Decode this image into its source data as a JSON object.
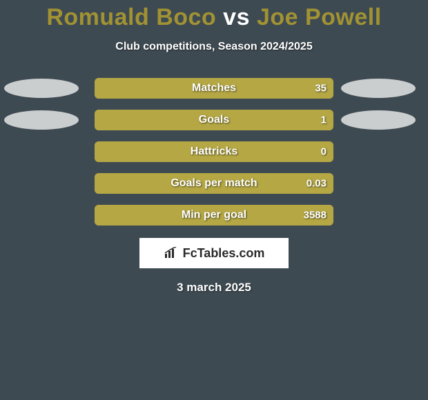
{
  "title": {
    "player1": "Romuald Boco",
    "vs": "vs",
    "player2": "Joe Powell"
  },
  "subtitle": "Club competitions, Season 2024/2025",
  "colors": {
    "ellipse_left": "#cbcecf",
    "ellipse_right": "#cbcecf",
    "bar_track": "#a39433",
    "bar_fill": "#b4a744",
    "background": "#3e4a52"
  },
  "rows": [
    {
      "label": "Matches",
      "value": "35",
      "fill_pct": 100,
      "show_ellipses": true
    },
    {
      "label": "Goals",
      "value": "1",
      "fill_pct": 100,
      "show_ellipses": true
    },
    {
      "label": "Hattricks",
      "value": "0",
      "fill_pct": 100,
      "show_ellipses": false
    },
    {
      "label": "Goals per match",
      "value": "0.03",
      "fill_pct": 100,
      "show_ellipses": false
    },
    {
      "label": "Min per goal",
      "value": "3588",
      "fill_pct": 100,
      "show_ellipses": false
    }
  ],
  "brand": "FcTables.com",
  "date": "3 march 2025"
}
